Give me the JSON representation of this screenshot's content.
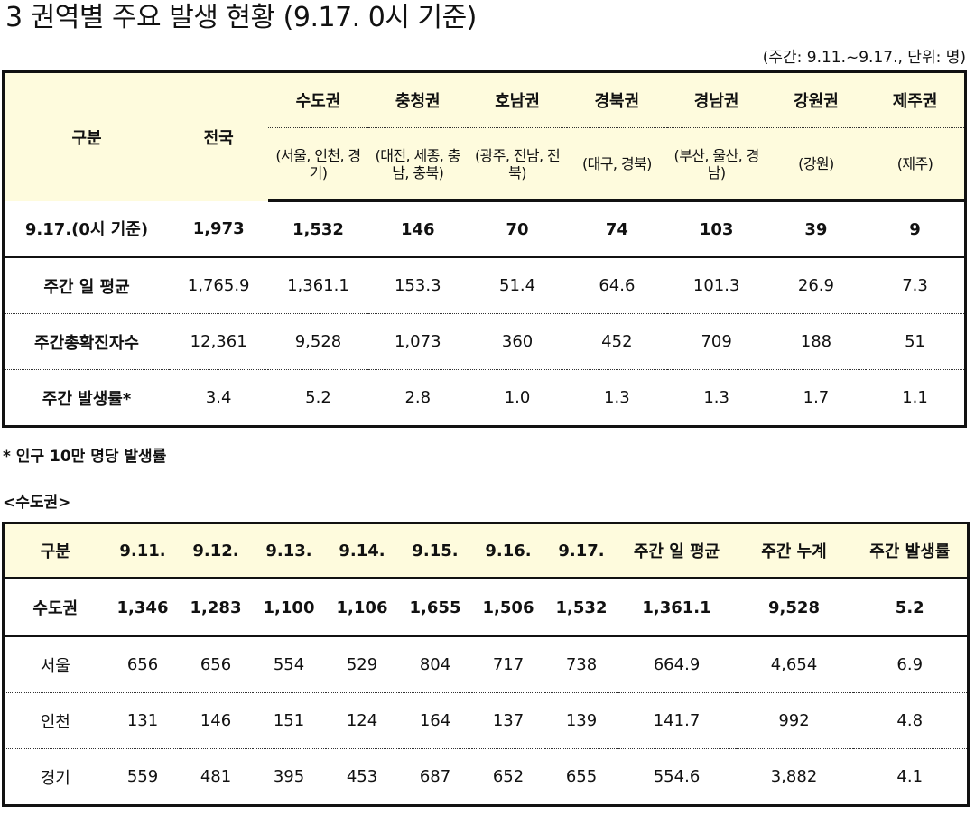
{
  "title": "3  권역별 주요 발생 현황 (9.17. 0시 기준)",
  "unit_note": "(주간: 9.11.~9.17., 단위: 명)",
  "table1": {
    "header_label": "구분",
    "national": "전국",
    "regions": [
      {
        "name": "수도권",
        "sub": "(서울, 인천, 경기)"
      },
      {
        "name": "충청권",
        "sub": "(대전, 세종, 충남, 충북)"
      },
      {
        "name": "호남권",
        "sub": "(광주, 전남, 전북)"
      },
      {
        "name": "경북권",
        "sub": "(대구, 경북)"
      },
      {
        "name": "경남권",
        "sub": "(부산, 울산, 경남)"
      },
      {
        "name": "강원권",
        "sub": "(강원)"
      },
      {
        "name": "제주권",
        "sub": "(제주)"
      }
    ],
    "rows": [
      {
        "label": "9.17.(0시 기준)",
        "values": [
          "1,973",
          "1,532",
          "146",
          "70",
          "74",
          "103",
          "39",
          "9"
        ]
      },
      {
        "label": "주간 일 평균",
        "values": [
          "1,765.9",
          "1,361.1",
          "153.3",
          "51.4",
          "64.6",
          "101.3",
          "26.9",
          "7.3"
        ]
      },
      {
        "label": "주간총확진자수",
        "values": [
          "12,361",
          "9,528",
          "1,073",
          "360",
          "452",
          "709",
          "188",
          "51"
        ]
      },
      {
        "label": "주간 발생률*",
        "values": [
          "3.4",
          "5.2",
          "2.8",
          "1.0",
          "1.3",
          "1.3",
          "1.7",
          "1.1"
        ]
      }
    ]
  },
  "footnote": "* 인구 10만 명당 발생률",
  "subtitle": "<수도권>",
  "table2": {
    "headers": [
      "구분",
      "9.11.",
      "9.12.",
      "9.13.",
      "9.14.",
      "9.15.",
      "9.16.",
      "9.17.",
      "주간 일 평균",
      "주간 누계",
      "주간 발생률"
    ],
    "rows": [
      {
        "label": "수도권",
        "values": [
          "1,346",
          "1,283",
          "1,100",
          "1,106",
          "1,655",
          "1,506",
          "1,532",
          "1,361.1",
          "9,528",
          "5.2"
        ]
      },
      {
        "label": "서울",
        "values": [
          "656",
          "656",
          "554",
          "529",
          "804",
          "717",
          "738",
          "664.9",
          "4,654",
          "6.9"
        ]
      },
      {
        "label": "인천",
        "values": [
          "131",
          "146",
          "151",
          "124",
          "164",
          "137",
          "139",
          "141.7",
          "992",
          "4.8"
        ]
      },
      {
        "label": "경기",
        "values": [
          "559",
          "481",
          "395",
          "453",
          "687",
          "652",
          "655",
          "554.6",
          "3,882",
          "4.1"
        ]
      }
    ]
  }
}
